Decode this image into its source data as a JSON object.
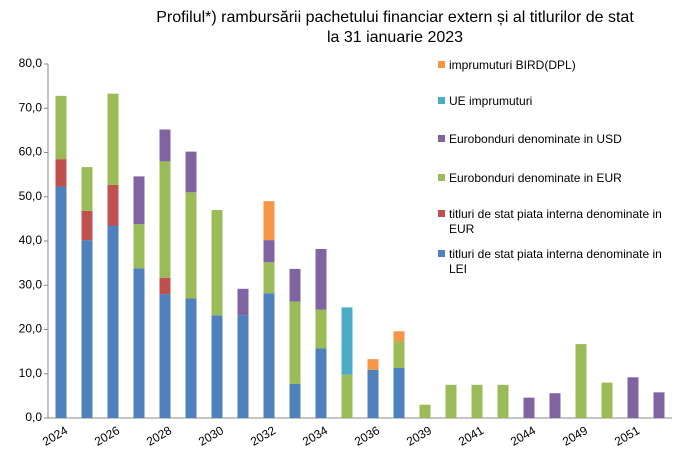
{
  "chart_data": {
    "type": "bar",
    "stacked": true,
    "title": [
      "Profilul*) rambursării pachetului financiar extern și al titlurilor de stat",
      "la 31 ianuarie 2023"
    ],
    "categories": [
      "2024",
      null,
      "2026",
      null,
      "2028",
      null,
      "2030",
      null,
      "2032",
      null,
      "2034",
      null,
      "2036",
      null,
      "2039",
      null,
      "2041",
      null,
      "2044",
      null,
      "2049",
      null,
      "2051",
      null
    ],
    "series": [
      {
        "name": "titluri de stat piata interna denominate in LEI",
        "color": "#4f81bd",
        "values": [
          52.3,
          40.2,
          43.5,
          33.8,
          28.0,
          27.0,
          23.2,
          23.2,
          28.2,
          7.7,
          15.7,
          null,
          10.9,
          11.3,
          null,
          null,
          null,
          null,
          null,
          null,
          null,
          null,
          null,
          null
        ]
      },
      {
        "name": "titluri de stat piata interna denominate in EUR",
        "color": "#c0504d",
        "values": [
          6.2,
          6.6,
          9.2,
          null,
          3.7,
          null,
          null,
          null,
          null,
          null,
          null,
          null,
          null,
          null,
          null,
          null,
          null,
          null,
          null,
          null,
          null,
          null,
          null,
          null
        ]
      },
      {
        "name": "Eurobonduri  denominate in EUR",
        "color": "#9bbb59",
        "values": [
          14.3,
          9.9,
          20.6,
          10.0,
          26.3,
          24.0,
          23.8,
          null,
          7.0,
          18.6,
          8.8,
          9.8,
          null,
          6.0,
          3.0,
          7.5,
          7.5,
          7.5,
          null,
          null,
          16.7,
          8.0,
          null,
          null
        ]
      },
      {
        "name": "Eurobonduri denominate in USD",
        "color": "#8064a2",
        "values": [
          null,
          null,
          null,
          10.8,
          7.2,
          9.2,
          null,
          6.0,
          5.0,
          7.4,
          13.7,
          null,
          null,
          null,
          null,
          null,
          null,
          null,
          4.6,
          5.6,
          null,
          null,
          9.2,
          5.8
        ]
      },
      {
        "name": "UE imprumuturi",
        "color": "#4bacc6",
        "values": [
          null,
          null,
          null,
          null,
          null,
          null,
          null,
          null,
          null,
          null,
          null,
          15.2,
          null,
          null,
          null,
          null,
          null,
          null,
          null,
          null,
          null,
          null,
          null,
          null
        ]
      },
      {
        "name": "imprumuturi BIRD(DPL)",
        "color": "#f79646",
        "values": [
          null,
          null,
          null,
          null,
          null,
          null,
          null,
          null,
          8.8,
          null,
          null,
          null,
          2.4,
          2.3,
          null,
          null,
          null,
          null,
          null,
          null,
          null,
          null,
          null,
          null
        ]
      }
    ],
    "ylim": [
      0,
      80
    ],
    "yticks": [
      {
        "value": 0,
        "label": "0,0"
      },
      {
        "value": 10,
        "label": "10,0"
      },
      {
        "value": 20,
        "label": "20,0"
      },
      {
        "value": 30,
        "label": "30,0"
      },
      {
        "value": 40,
        "label": "40,0"
      },
      {
        "value": 50,
        "label": "50,0"
      },
      {
        "value": 60,
        "label": "60,0"
      },
      {
        "value": 70,
        "label": "70,0"
      },
      {
        "value": 80,
        "label": "80,0"
      }
    ],
    "grid": false,
    "legend": "right"
  }
}
